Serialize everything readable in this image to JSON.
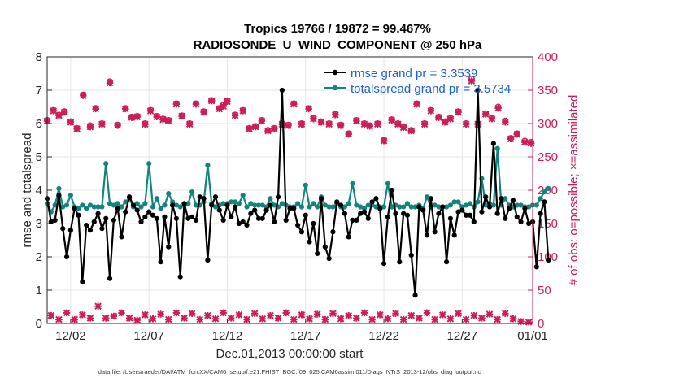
{
  "chart_data": {
    "type": "line",
    "title_line1": "Tropics 19766 / 19872 = 99.467%",
    "title_line2": "RADIOSONDE_U_WIND_COMPONENT @ 250 hPa",
    "xlabel": "Dec.01,2013 00:00:00 start",
    "ylabel_left": "rmse and totalspread",
    "ylabel_right": "# of obs: o=possible; ×=assimilated",
    "footnote": "data file: /Users/raeder/DAI/ATM_forcXX/CAM6_setup/f.e21.FHIST_BGC.f09_025.CAM6assim.011/Diags_NTrS_2013-12/obs_diag_output.nc",
    "xlim": [
      0.5,
      31.5
    ],
    "ylim_left": [
      0,
      8
    ],
    "ylim_right": [
      0,
      400
    ],
    "x_ticks": [
      {
        "x": 2,
        "label": "12/02"
      },
      {
        "x": 7,
        "label": "12/07"
      },
      {
        "x": 12,
        "label": "12/12"
      },
      {
        "x": 17,
        "label": "12/17"
      },
      {
        "x": 22,
        "label": "12/22"
      },
      {
        "x": 27,
        "label": "12/27"
      },
      {
        "x": 32,
        "label": "01/01"
      }
    ],
    "y_ticks_left": [
      0,
      1,
      2,
      3,
      4,
      5,
      6,
      7,
      8
    ],
    "y_ticks_right": [
      0,
      50,
      100,
      150,
      200,
      250,
      300,
      350,
      400
    ],
    "legend": [
      {
        "label": "rmse grand pr = 3.3539",
        "color": "#000000"
      },
      {
        "label": "totalspread grand pr = 3.5734",
        "color": "#13847c"
      }
    ],
    "colors": {
      "rmse": "#000000",
      "spread": "#13847c",
      "obs": "#cc1d55",
      "axis": "#262626"
    },
    "series": [
      {
        "name": "rmse",
        "axis": "left",
        "x_start": 0.5,
        "x_step": 0.25,
        "values": [
          3.75,
          3.05,
          3.1,
          3.85,
          2.85,
          2.0,
          2.8,
          3.45,
          3.25,
          1.25,
          2.95,
          2.8,
          3.05,
          3.3,
          2.85,
          3.15,
          1.35,
          3.1,
          3.45,
          2.6,
          3.35,
          3.8,
          3.55,
          3.4,
          3.05,
          3.2,
          3.35,
          3.25,
          3.15,
          1.85,
          3.2,
          2.3,
          3.55,
          3.15,
          1.4,
          3.6,
          3.15,
          3.2,
          3.1,
          3.8,
          3.75,
          1.9,
          3.55,
          3.8,
          3.4,
          3.1,
          3.55,
          3.2,
          3.5,
          3.0,
          3.05,
          2.95,
          3.3,
          3.4,
          3.15,
          3.15,
          3.4,
          3.55,
          3.05,
          3.8,
          7.0,
          3.1,
          3.45,
          3.45,
          2.95,
          2.75,
          3.25,
          2.45,
          3.0,
          2.1,
          3.75,
          2.3,
          1.95,
          2.75,
          3.65,
          3.55,
          3.3,
          2.6,
          3.1,
          3.1,
          3.3,
          3.35,
          3.15,
          3.65,
          3.75,
          3.45,
          1.8,
          3.2,
          4.0,
          3.3,
          1.85,
          3.3,
          3.25,
          2.05,
          0.85,
          3.5,
          3.4,
          2.65,
          3.75,
          2.75,
          3.3,
          3.5,
          1.85,
          3.15,
          2.65,
          3.35,
          3.4,
          3.25,
          3.25,
          3.05,
          7.0,
          3.35,
          3.8,
          3.5,
          5.4,
          3.3,
          3.75,
          3.15,
          3.45,
          3.7,
          3.2,
          3.05,
          3.45,
          3.0,
          3.05,
          1.7,
          3.3,
          3.65,
          1.9
        ]
      },
      {
        "name": "totalspread",
        "axis": "left",
        "x_start": 0.5,
        "x_step": 0.25,
        "values": [
          3.6,
          3.35,
          3.55,
          4.05,
          3.5,
          3.55,
          3.85,
          3.5,
          3.45,
          3.55,
          3.45,
          3.55,
          3.5,
          3.5,
          3.5,
          4.8,
          3.6,
          3.55,
          3.6,
          3.5,
          3.65,
          3.75,
          3.5,
          3.6,
          3.5,
          3.6,
          4.8,
          3.5,
          3.75,
          3.45,
          3.55,
          3.9,
          3.65,
          3.55,
          3.5,
          3.55,
          3.6,
          3.95,
          3.55,
          3.55,
          3.65,
          4.75,
          3.6,
          3.5,
          3.55,
          3.6,
          3.6,
          3.65,
          3.65,
          3.6,
          3.85,
          3.5,
          3.6,
          3.55,
          3.55,
          3.55,
          3.5,
          3.75,
          3.55,
          3.5,
          3.6,
          3.55,
          3.5,
          3.5,
          3.6,
          3.5,
          4.15,
          3.5,
          3.6,
          3.5,
          3.8,
          3.55,
          3.5,
          3.5,
          3.6,
          3.5,
          3.5,
          3.6,
          4.2,
          3.55,
          3.5,
          3.45,
          3.55,
          3.55,
          3.5,
          3.5,
          3.5,
          4.2,
          3.5,
          3.55,
          3.5,
          3.5,
          3.6,
          3.5,
          3.5,
          3.55,
          3.45,
          3.8,
          3.5,
          3.55,
          3.5,
          3.5,
          3.5,
          3.55,
          3.65,
          3.65,
          3.5,
          3.55,
          3.6,
          3.5,
          3.65,
          4.35,
          3.55,
          3.6,
          3.55,
          5.25,
          3.55,
          3.75,
          3.55,
          3.5,
          3.55,
          3.55,
          3.5,
          3.5,
          3.55,
          3.55,
          3.75,
          3.95,
          4.05
        ]
      },
      {
        "name": "obs_possible",
        "axis": "right",
        "marker": "o",
        "x": [
          0.5,
          0.9,
          1.25,
          1.6,
          2.0,
          2.4,
          2.8,
          3.25,
          3.6,
          4.0,
          4.5,
          5.0,
          5.5,
          5.9,
          6.25,
          6.75,
          7.1,
          7.5,
          7.9,
          8.25,
          8.75,
          9.1,
          9.6,
          10.0,
          10.5,
          11.0,
          11.5,
          11.75,
          12.0,
          12.5,
          13.0,
          13.4,
          13.8,
          14.2,
          14.6,
          15.0,
          15.5,
          15.9,
          16.25,
          16.75,
          17.2,
          17.5,
          18.0,
          18.5,
          18.9,
          19.25,
          19.75,
          20.25,
          20.75,
          21.1,
          21.6,
          22.0,
          22.5,
          22.9,
          23.25,
          23.75,
          24.1,
          24.6,
          25.0,
          25.5,
          25.9,
          26.25,
          26.75,
          27.25,
          27.6,
          28.0,
          28.5,
          28.9,
          29.3,
          29.75,
          30.1,
          30.5,
          31.0,
          31.4
        ],
        "values": [
          305,
          320,
          313,
          318,
          303,
          293,
          343,
          297,
          323,
          300,
          363,
          298,
          323,
          310,
          311,
          300,
          320,
          311,
          307,
          305,
          330,
          312,
          300,
          330,
          318,
          335,
          323,
          328,
          334,
          313,
          320,
          293,
          296,
          305,
          290,
          293,
          300,
          298,
          330,
          300,
          323,
          308,
          303,
          300,
          314,
          298,
          285,
          305,
          300,
          297,
          300,
          275,
          306,
          300,
          295,
          290,
          330,
          300,
          320,
          310,
          303,
          308,
          318,
          300,
          367,
          300,
          315,
          308,
          325,
          304,
          278,
          285,
          274,
          272
        ]
      },
      {
        "name": "obs_assimilated",
        "axis": "right",
        "marker": "x",
        "x": [
          0.5,
          0.9,
          1.25,
          1.6,
          2.0,
          2.4,
          2.8,
          3.25,
          3.6,
          4.0,
          4.5,
          5.0,
          5.5,
          5.9,
          6.25,
          6.75,
          7.1,
          7.5,
          7.9,
          8.25,
          8.75,
          9.1,
          9.6,
          10.0,
          10.5,
          11.0,
          11.5,
          11.75,
          12.0,
          12.5,
          13.0,
          13.4,
          13.8,
          14.2,
          14.6,
          15.0,
          15.5,
          15.9,
          16.25,
          16.75,
          17.2,
          17.5,
          18.0,
          18.5,
          18.9,
          19.25,
          19.75,
          20.25,
          20.75,
          21.1,
          21.6,
          22.0,
          22.5,
          22.9,
          23.25,
          23.75,
          24.1,
          24.6,
          25.0,
          25.5,
          25.9,
          26.25,
          26.75,
          27.25,
          27.6,
          28.0,
          28.5,
          28.9,
          29.3,
          29.75,
          30.1,
          30.5,
          31.0,
          31.4
        ],
        "values": [
          304,
          319,
          312,
          317,
          302,
          292,
          342,
          295,
          322,
          299,
          361,
          297,
          322,
          309,
          310,
          299,
          319,
          310,
          306,
          304,
          329,
          311,
          299,
          329,
          317,
          334,
          322,
          326,
          333,
          312,
          319,
          292,
          295,
          304,
          289,
          292,
          299,
          297,
          329,
          299,
          322,
          307,
          302,
          299,
          313,
          297,
          284,
          304,
          299,
          296,
          299,
          274,
          305,
          299,
          294,
          289,
          329,
          299,
          319,
          309,
          302,
          307,
          317,
          299,
          364,
          299,
          314,
          307,
          323,
          302,
          277,
          284,
          272,
          270
        ]
      },
      {
        "name": "obs_bottom",
        "axis": "right",
        "marker": "x",
        "x": [
          0.75,
          1.25,
          1.75,
          2.25,
          2.75,
          3.25,
          3.75,
          4.25,
          4.75,
          5.25,
          5.75,
          6.25,
          6.75,
          7.25,
          7.75,
          8.25,
          8.75,
          9.25,
          9.75,
          10.25,
          10.75,
          11.25,
          11.75,
          12.25,
          12.75,
          13.25,
          13.75,
          14.25,
          14.75,
          15.25,
          15.75,
          16.25,
          16.75,
          17.25,
          17.75,
          18.25,
          18.75,
          19.25,
          19.75,
          20.25,
          20.75,
          21.25,
          21.75,
          22.25,
          22.75,
          23.25,
          23.75,
          24.25,
          24.75,
          25.25,
          25.75,
          26.25,
          26.75,
          27.25,
          27.75,
          28.25,
          28.75,
          29.25,
          29.75,
          30.25,
          30.75,
          31.25
        ],
        "values": [
          12,
          6,
          16,
          6,
          13,
          8,
          26,
          8,
          11,
          16,
          8,
          5,
          13,
          7,
          14,
          6,
          16,
          8,
          15,
          6,
          12,
          7,
          16,
          8,
          13,
          6,
          15,
          7,
          12,
          8,
          16,
          6,
          13,
          7,
          14,
          6,
          15,
          7,
          12,
          8,
          16,
          6,
          13,
          7,
          15,
          6,
          12,
          8,
          16,
          6,
          13,
          7,
          15,
          6,
          12,
          8,
          14,
          6,
          15,
          7,
          3,
          2
        ]
      }
    ]
  }
}
